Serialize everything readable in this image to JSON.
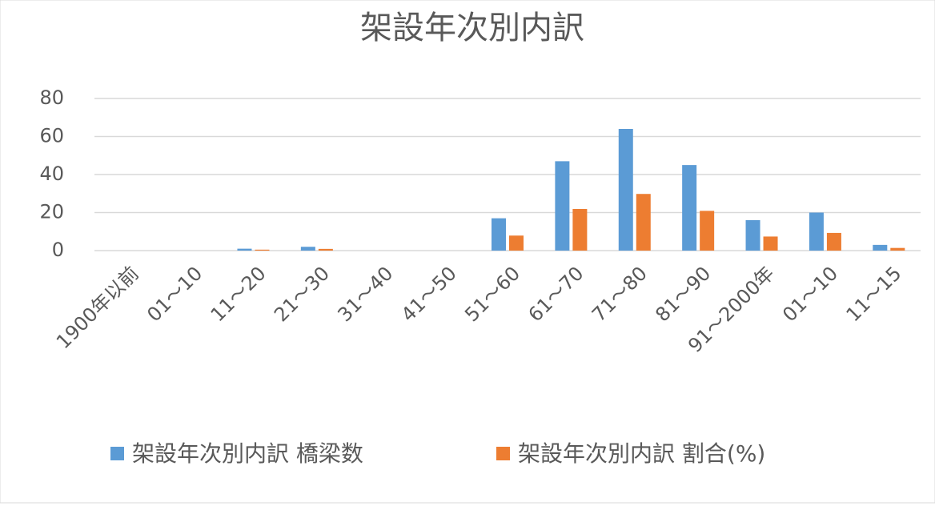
{
  "chart_data": {
    "type": "bar",
    "title": "架設年次別内訳",
    "categories": [
      "1900年以前",
      "01～10",
      "11～20",
      "21～30",
      "31～40",
      "41～50",
      "51～60",
      "61～70",
      "71～80",
      "81～90",
      "91～2000年",
      "01～10",
      "11～15"
    ],
    "series": [
      {
        "name": "架設年次別内訳 橋梁数",
        "color": "#5b9bd5",
        "values": [
          0,
          0,
          1,
          2,
          0,
          0,
          17,
          47,
          64,
          45,
          16,
          20,
          3
        ]
      },
      {
        "name": "架設年次別内訳 割合(%)",
        "color": "#ed7d31",
        "values": [
          0,
          0,
          0.5,
          0.9,
          0,
          0,
          7.9,
          21.9,
          29.8,
          20.9,
          7.4,
          9.3,
          1.4
        ]
      }
    ],
    "ylim": [
      0,
      80
    ],
    "yticks": [
      0,
      20,
      40,
      60,
      80
    ],
    "grid": true,
    "legend": "bottom"
  }
}
